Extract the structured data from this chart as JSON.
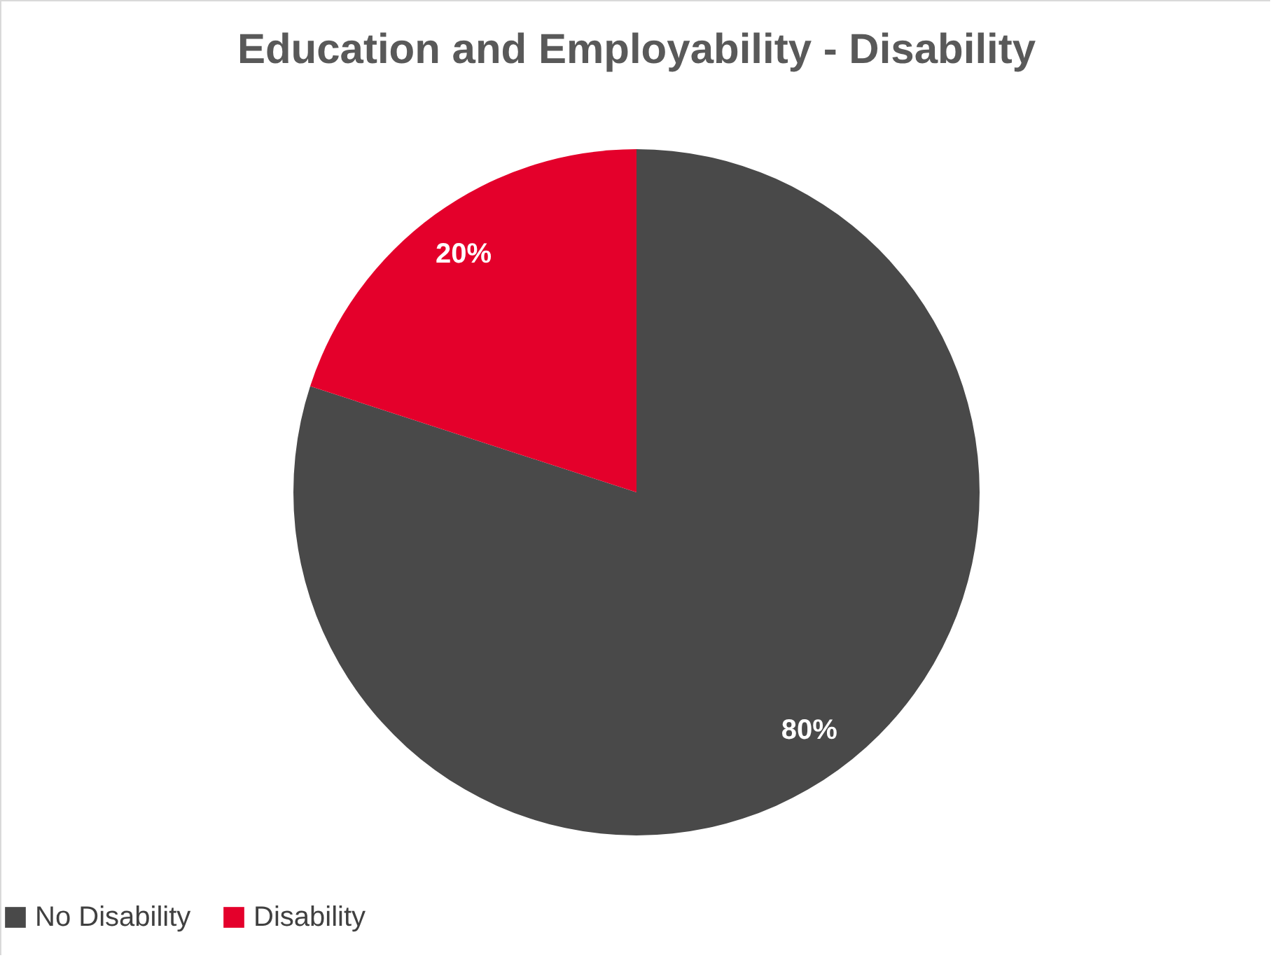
{
  "chart_data": {
    "type": "pie",
    "title": "Education and Employability - Disability",
    "categories": [
      "No Disability",
      "Disability"
    ],
    "values": [
      80,
      20
    ],
    "colors": [
      "#494949",
      "#e4002b"
    ],
    "value_labels": [
      "80%",
      "20%"
    ],
    "legend": "bottom"
  }
}
